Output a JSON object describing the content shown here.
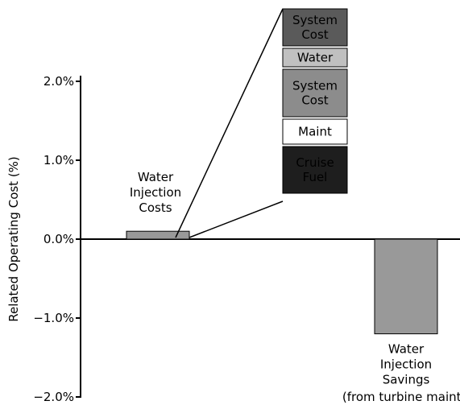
{
  "chart_data": {
    "type": "bar",
    "y_label": "Related Operating Cost (%)",
    "categories": [
      "Water\nInjection\nCosts",
      "Water\nInjection\nSavings"
    ],
    "values": [
      0.1,
      -1.2
    ],
    "color": "#999999",
    "ylim": [
      -2,
      2
    ],
    "yticks": [
      {
        "value": -2,
        "label": "−2.0%"
      },
      {
        "value": -1,
        "label": "−1.0%"
      },
      {
        "value": 0,
        "label": "0.0%"
      },
      {
        "value": 1,
        "label": "1.0%"
      },
      {
        "value": 2,
        "label": "2.0%"
      }
    ],
    "annotation": "(from turbine maint.)",
    "breakdown": [
      {
        "label": "System\nCost",
        "color": "#5a5a5a",
        "text_color": "#ffffff"
      },
      {
        "label": "Water",
        "color": "#c0c0c0",
        "text_color": "#000000"
      },
      {
        "label": "System\nCost",
        "color": "#8c8c8c",
        "text_color": "#000000"
      },
      {
        "label": "Maint",
        "color": "#ffffff",
        "text_color": "#000000"
      },
      {
        "label": "Cruise\nFuel",
        "color": "#1e1e1e",
        "text_color": "#ffffff"
      }
    ]
  }
}
